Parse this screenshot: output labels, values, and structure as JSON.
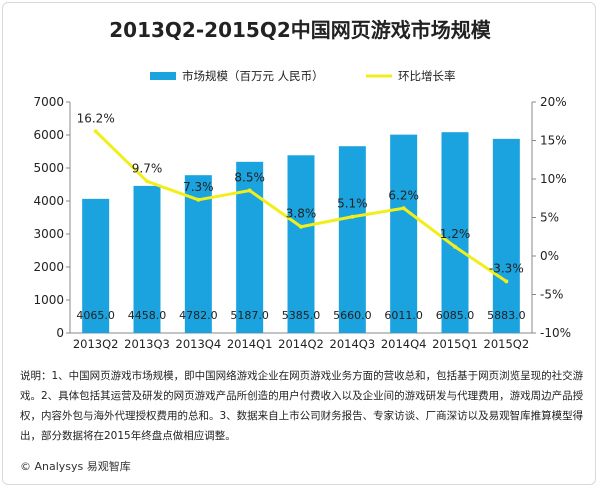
{
  "chart_data": {
    "type": "bar+line",
    "title": "2013Q2-2015Q2中国网页游戏市场规模",
    "categories": [
      "2013Q2",
      "2013Q3",
      "2013Q4",
      "2014Q1",
      "2014Q2",
      "2014Q3",
      "2014Q4",
      "2015Q1",
      "2015Q2"
    ],
    "series": [
      {
        "name": "市场规模（百万元 人民币）",
        "type": "bar",
        "axis": "left",
        "values": [
          4065.0,
          4458.0,
          4782.0,
          5187.0,
          5385.0,
          5660.0,
          6011.0,
          6085.0,
          5883.0
        ],
        "labels": [
          "4065.0",
          "4458.0",
          "4782.0",
          "5187.0",
          "5385.0",
          "5660.0",
          "6011.0",
          "6085.0",
          "5883.0"
        ],
        "color": "#1aa3de"
      },
      {
        "name": "环比增长率",
        "type": "line",
        "axis": "right",
        "values": [
          16.2,
          9.7,
          7.3,
          8.5,
          3.8,
          5.1,
          6.2,
          1.2,
          -3.3
        ],
        "labels": [
          "16.2%",
          "9.7%",
          "7.3%",
          "8.5%",
          "3.8%",
          "5.1%",
          "6.2%",
          "1.2%",
          "-3.3%"
        ],
        "color": "#f2ee1c"
      }
    ],
    "y_left": {
      "range": [
        0,
        7000
      ],
      "ticks": [
        0,
        1000,
        2000,
        3000,
        4000,
        5000,
        6000,
        7000
      ]
    },
    "y_right": {
      "range": [
        -10,
        20
      ],
      "ticks": [
        "20%",
        "15%",
        "10%",
        "5%",
        "0%",
        "-5%",
        "-10%"
      ]
    },
    "legend_position": "top",
    "grid": false
  },
  "notes": "说明：1、中国网页游戏市场规模，即中国网络游戏企业在网页游戏业务方面的营收总和，包括基于网页浏览呈现的社交游戏。2、具体包括其运营及研发的网页游戏产品所创造的用户付费收入以及企业间的游戏研发与代理费用，游戏周边产品授权，内容外包与海外代理授权费用的总和。3、数据来自上市公司财务报告、专家访谈、厂商深访以及易观智库推算模型得出，部分数据将在2015年终盘点做相应调整。",
  "source": "© Analysys 易观智库"
}
